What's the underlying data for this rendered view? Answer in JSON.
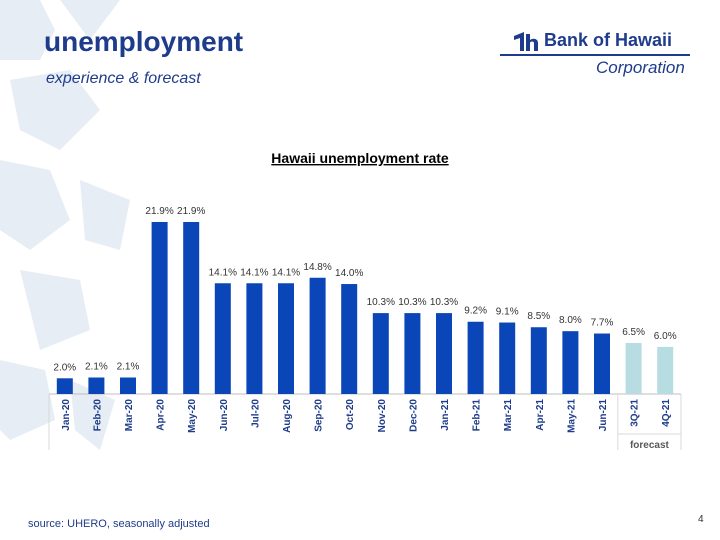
{
  "header": {
    "title": "unemployment",
    "subtitle": "experience & forecast"
  },
  "logo": {
    "name": "Bank of Hawaii",
    "corporation": "Corporation"
  },
  "footer": {
    "source": "source: UHERO, seasonally adjusted",
    "page_number": "4"
  },
  "colors": {
    "brand": "#1f3c8c",
    "actual": "#0a46b8",
    "forecast": "#b7dde3"
  },
  "chart_data": {
    "type": "bar",
    "title": "Hawaii unemployment rate",
    "xlabel": "",
    "ylabel": "",
    "ylim": [
      0,
      22
    ],
    "grid": false,
    "categories": [
      "Jan-20",
      "Feb-20",
      "Mar-20",
      "Apr-20",
      "May-20",
      "Jun-20",
      "Jul-20",
      "Aug-20",
      "Sep-20",
      "Oct-20",
      "Nov-20",
      "Dec-20",
      "Jan-21",
      "Feb-21",
      "Mar-21",
      "Apr-21",
      "May-21",
      "Jun-21",
      "3Q-21",
      "4Q-21"
    ],
    "values": [
      2.0,
      2.1,
      2.1,
      21.9,
      21.9,
      14.1,
      14.1,
      14.1,
      14.8,
      14.0,
      10.3,
      10.3,
      10.3,
      9.2,
      9.1,
      8.5,
      8.0,
      7.7,
      6.5,
      6.0
    ],
    "labels": [
      "2.0%",
      "2.1%",
      "2.1%",
      "21.9%",
      "21.9%",
      "14.1%",
      "14.1%",
      "14.1%",
      "14.8%",
      "14.0%",
      "10.3%",
      "10.3%",
      "10.3%",
      "9.2%",
      "9.1%",
      "8.5%",
      "8.0%",
      "7.7%",
      "6.5%",
      "6.0%"
    ],
    "forecast_start_index": 18,
    "forecast_label": "forecast"
  }
}
